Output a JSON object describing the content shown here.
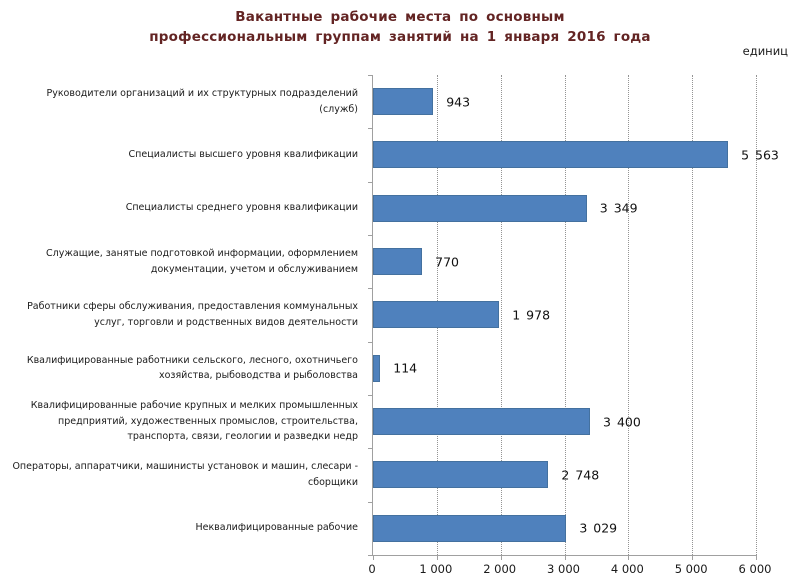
{
  "title_line1": "Вакантные рабочие места по основным",
  "title_line2": "профессиональным группам занятий на 1 января 2016 года",
  "units_label": "единиц",
  "chart_data": {
    "type": "bar",
    "orientation": "horizontal",
    "title": "Вакантные рабочие места по основным профессиональным группам занятий на 1 января 2016 года",
    "xlabel": "единиц",
    "ylabel": "",
    "grid": "vertical-dotted",
    "legend": "none",
    "xlim": [
      0,
      6000
    ],
    "x_ticks": [
      0,
      1000,
      2000,
      3000,
      4000,
      5000,
      6000
    ],
    "x_tick_labels": [
      "0",
      "1 000",
      "2 000",
      "3 000",
      "4 000",
      "5 000",
      "6 000"
    ],
    "categories": [
      "Руководители организаций и их структурных подразделений (служб)",
      "Специалисты высшего уровня квалификации",
      "Специалисты среднего уровня квалификации",
      "Служащие, занятые подготовкой информации, оформлением документации, учетом и обслуживанием",
      "Работники сферы обслуживания, предоставления коммунальных услуг, торговли и родственных видов деятельности",
      "Квалифицированные работники сельского, лесного, охотничьего хозяйства, рыбоводства и рыболовства",
      "Квалифицированные рабочие крупных и мелких промышленных предприятий, художественных промыслов, строительства, транспорта, связи, геологии и разведки недр",
      "Операторы, аппаратчики, машинисты установок и машин, слесари - сборщики",
      "Неквалифицированные рабочие"
    ],
    "values": [
      943,
      5563,
      3349,
      770,
      1978,
      114,
      3400,
      2748,
      3029
    ],
    "value_labels": [
      "943",
      "5 563",
      "3 349",
      "770",
      "1 978",
      "114",
      "3 400",
      "2 748",
      "3 029"
    ],
    "bar_color": "#4f81bd",
    "title_color": "#632423",
    "axis_color": "#a0a0a0"
  }
}
